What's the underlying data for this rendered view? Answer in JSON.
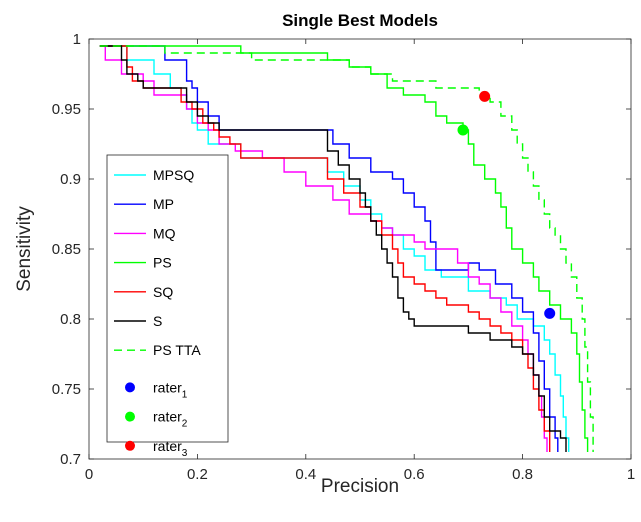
{
  "chart_data": {
    "type": "line",
    "title": "Single Best Models",
    "xlabel": "Precision",
    "ylabel": "Sensitivity",
    "xlim": [
      0,
      1
    ],
    "ylim": [
      0.7,
      1
    ],
    "xticks": [
      "0",
      "0.2",
      "0.4",
      "0.6",
      "0.8",
      "1"
    ],
    "yticks": [
      "0.7",
      "0.75",
      "0.8",
      "0.85",
      "0.9",
      "0.95",
      "1"
    ],
    "grid": false,
    "legend_position": "left",
    "series": [
      {
        "name": "MPSQ",
        "color": "#00ffff",
        "dash": "solid",
        "points": [
          [
            0.02,
            0.995
          ],
          [
            0.06,
            0.995
          ],
          [
            0.07,
            0.985
          ],
          [
            0.1,
            0.985
          ],
          [
            0.12,
            0.975
          ],
          [
            0.14,
            0.975
          ],
          [
            0.15,
            0.965
          ],
          [
            0.17,
            0.96
          ],
          [
            0.18,
            0.95
          ],
          [
            0.19,
            0.94
          ],
          [
            0.2,
            0.935
          ],
          [
            0.22,
            0.925
          ],
          [
            0.26,
            0.925
          ],
          [
            0.28,
            0.915
          ],
          [
            0.4,
            0.915
          ],
          [
            0.44,
            0.905
          ],
          [
            0.47,
            0.895
          ],
          [
            0.5,
            0.885
          ],
          [
            0.52,
            0.875
          ],
          [
            0.54,
            0.865
          ],
          [
            0.56,
            0.86
          ],
          [
            0.58,
            0.85
          ],
          [
            0.6,
            0.845
          ],
          [
            0.62,
            0.835
          ],
          [
            0.65,
            0.83
          ],
          [
            0.7,
            0.82
          ],
          [
            0.74,
            0.815
          ],
          [
            0.77,
            0.81
          ],
          [
            0.79,
            0.8
          ],
          [
            0.82,
            0.795
          ],
          [
            0.84,
            0.785
          ],
          [
            0.85,
            0.775
          ],
          [
            0.86,
            0.76
          ],
          [
            0.87,
            0.745
          ],
          [
            0.875,
            0.73
          ],
          [
            0.88,
            0.715
          ],
          [
            0.885,
            0.705
          ]
        ]
      },
      {
        "name": "MP",
        "color": "#0000ff",
        "dash": "solid",
        "points": [
          [
            0.02,
            0.995
          ],
          [
            0.13,
            0.995
          ],
          [
            0.14,
            0.985
          ],
          [
            0.17,
            0.985
          ],
          [
            0.18,
            0.97
          ],
          [
            0.19,
            0.965
          ],
          [
            0.2,
            0.955
          ],
          [
            0.22,
            0.945
          ],
          [
            0.24,
            0.935
          ],
          [
            0.42,
            0.935
          ],
          [
            0.45,
            0.925
          ],
          [
            0.48,
            0.915
          ],
          [
            0.52,
            0.905
          ],
          [
            0.56,
            0.9
          ],
          [
            0.58,
            0.89
          ],
          [
            0.6,
            0.88
          ],
          [
            0.62,
            0.87
          ],
          [
            0.63,
            0.855
          ],
          [
            0.64,
            0.835
          ],
          [
            0.66,
            0.835
          ],
          [
            0.7,
            0.84
          ],
          [
            0.72,
            0.835
          ],
          [
            0.75,
            0.825
          ],
          [
            0.78,
            0.815
          ],
          [
            0.8,
            0.805
          ],
          [
            0.82,
            0.79
          ],
          [
            0.83,
            0.77
          ],
          [
            0.84,
            0.75
          ],
          [
            0.85,
            0.73
          ],
          [
            0.86,
            0.715
          ],
          [
            0.865,
            0.705
          ]
        ]
      },
      {
        "name": "MQ",
        "color": "#ff00ff",
        "dash": "solid",
        "points": [
          [
            0.02,
            0.995
          ],
          [
            0.03,
            0.985
          ],
          [
            0.05,
            0.985
          ],
          [
            0.06,
            0.975
          ],
          [
            0.1,
            0.97
          ],
          [
            0.12,
            0.96
          ],
          [
            0.16,
            0.96
          ],
          [
            0.18,
            0.95
          ],
          [
            0.2,
            0.94
          ],
          [
            0.22,
            0.935
          ],
          [
            0.24,
            0.925
          ],
          [
            0.27,
            0.92
          ],
          [
            0.32,
            0.915
          ],
          [
            0.36,
            0.905
          ],
          [
            0.4,
            0.895
          ],
          [
            0.45,
            0.885
          ],
          [
            0.48,
            0.875
          ],
          [
            0.52,
            0.87
          ],
          [
            0.54,
            0.865
          ],
          [
            0.56,
            0.86
          ],
          [
            0.6,
            0.855
          ],
          [
            0.62,
            0.85
          ],
          [
            0.66,
            0.85
          ],
          [
            0.68,
            0.84
          ],
          [
            0.7,
            0.83
          ],
          [
            0.72,
            0.825
          ],
          [
            0.74,
            0.815
          ],
          [
            0.76,
            0.805
          ],
          [
            0.78,
            0.795
          ],
          [
            0.8,
            0.785
          ],
          [
            0.81,
            0.775
          ],
          [
            0.82,
            0.76
          ],
          [
            0.83,
            0.745
          ],
          [
            0.835,
            0.73
          ],
          [
            0.84,
            0.715
          ],
          [
            0.845,
            0.705
          ]
        ]
      },
      {
        "name": "PS",
        "color": "#00ff00",
        "dash": "solid",
        "points": [
          [
            0.02,
            0.995
          ],
          [
            0.26,
            0.995
          ],
          [
            0.28,
            0.99
          ],
          [
            0.4,
            0.99
          ],
          [
            0.44,
            0.985
          ],
          [
            0.48,
            0.98
          ],
          [
            0.52,
            0.975
          ],
          [
            0.55,
            0.965
          ],
          [
            0.58,
            0.96
          ],
          [
            0.62,
            0.955
          ],
          [
            0.64,
            0.945
          ],
          [
            0.66,
            0.94
          ],
          [
            0.69,
            0.935
          ],
          [
            0.7,
            0.925
          ],
          [
            0.71,
            0.91
          ],
          [
            0.73,
            0.9
          ],
          [
            0.75,
            0.89
          ],
          [
            0.76,
            0.88
          ],
          [
            0.77,
            0.865
          ],
          [
            0.78,
            0.85
          ],
          [
            0.8,
            0.84
          ],
          [
            0.82,
            0.83
          ],
          [
            0.83,
            0.82
          ],
          [
            0.85,
            0.81
          ],
          [
            0.87,
            0.8
          ],
          [
            0.89,
            0.79
          ],
          [
            0.9,
            0.775
          ],
          [
            0.905,
            0.755
          ],
          [
            0.91,
            0.735
          ],
          [
            0.915,
            0.715
          ],
          [
            0.92,
            0.705
          ]
        ]
      },
      {
        "name": "SQ",
        "color": "#ff0000",
        "dash": "solid",
        "points": [
          [
            0.02,
            0.995
          ],
          [
            0.06,
            0.995
          ],
          [
            0.07,
            0.98
          ],
          [
            0.08,
            0.97
          ],
          [
            0.1,
            0.965
          ],
          [
            0.15,
            0.965
          ],
          [
            0.17,
            0.955
          ],
          [
            0.19,
            0.95
          ],
          [
            0.21,
            0.94
          ],
          [
            0.23,
            0.935
          ],
          [
            0.24,
            0.93
          ],
          [
            0.26,
            0.925
          ],
          [
            0.28,
            0.915
          ],
          [
            0.42,
            0.915
          ],
          [
            0.44,
            0.9
          ],
          [
            0.47,
            0.89
          ],
          [
            0.5,
            0.88
          ],
          [
            0.52,
            0.87
          ],
          [
            0.54,
            0.86
          ],
          [
            0.56,
            0.85
          ],
          [
            0.57,
            0.84
          ],
          [
            0.58,
            0.83
          ],
          [
            0.6,
            0.825
          ],
          [
            0.62,
            0.82
          ],
          [
            0.64,
            0.815
          ],
          [
            0.66,
            0.81
          ],
          [
            0.7,
            0.805
          ],
          [
            0.72,
            0.8
          ],
          [
            0.74,
            0.795
          ],
          [
            0.76,
            0.79
          ],
          [
            0.78,
            0.785
          ],
          [
            0.8,
            0.775
          ],
          [
            0.81,
            0.765
          ],
          [
            0.82,
            0.75
          ],
          [
            0.83,
            0.735
          ],
          [
            0.84,
            0.72
          ],
          [
            0.85,
            0.705
          ]
        ]
      },
      {
        "name": "S",
        "color": "#000000",
        "dash": "solid",
        "points": [
          [
            0.02,
            0.995
          ],
          [
            0.05,
            0.995
          ],
          [
            0.06,
            0.985
          ],
          [
            0.07,
            0.975
          ],
          [
            0.09,
            0.97
          ],
          [
            0.1,
            0.965
          ],
          [
            0.16,
            0.965
          ],
          [
            0.18,
            0.955
          ],
          [
            0.2,
            0.945
          ],
          [
            0.22,
            0.94
          ],
          [
            0.24,
            0.935
          ],
          [
            0.43,
            0.935
          ],
          [
            0.44,
            0.92
          ],
          [
            0.46,
            0.91
          ],
          [
            0.48,
            0.9
          ],
          [
            0.5,
            0.89
          ],
          [
            0.51,
            0.88
          ],
          [
            0.52,
            0.87
          ],
          [
            0.53,
            0.86
          ],
          [
            0.54,
            0.85
          ],
          [
            0.55,
            0.84
          ],
          [
            0.56,
            0.83
          ],
          [
            0.57,
            0.815
          ],
          [
            0.58,
            0.805
          ],
          [
            0.59,
            0.8
          ],
          [
            0.6,
            0.795
          ],
          [
            0.68,
            0.795
          ],
          [
            0.7,
            0.79
          ],
          [
            0.74,
            0.785
          ],
          [
            0.78,
            0.78
          ],
          [
            0.8,
            0.775
          ],
          [
            0.82,
            0.76
          ],
          [
            0.83,
            0.745
          ],
          [
            0.84,
            0.73
          ],
          [
            0.85,
            0.72
          ],
          [
            0.87,
            0.715
          ],
          [
            0.88,
            0.705
          ]
        ]
      },
      {
        "name": "PS TTA",
        "color": "#00ff00",
        "dash": "dashed",
        "points": [
          [
            0.02,
            0.995
          ],
          [
            0.12,
            0.995
          ],
          [
            0.14,
            0.99
          ],
          [
            0.28,
            0.99
          ],
          [
            0.3,
            0.985
          ],
          [
            0.46,
            0.985
          ],
          [
            0.48,
            0.98
          ],
          [
            0.52,
            0.975
          ],
          [
            0.56,
            0.97
          ],
          [
            0.62,
            0.97
          ],
          [
            0.64,
            0.965
          ],
          [
            0.7,
            0.965
          ],
          [
            0.72,
            0.96
          ],
          [
            0.74,
            0.955
          ],
          [
            0.76,
            0.945
          ],
          [
            0.78,
            0.935
          ],
          [
            0.79,
            0.925
          ],
          [
            0.8,
            0.915
          ],
          [
            0.81,
            0.905
          ],
          [
            0.82,
            0.895
          ],
          [
            0.83,
            0.885
          ],
          [
            0.84,
            0.875
          ],
          [
            0.85,
            0.865
          ],
          [
            0.86,
            0.86
          ],
          [
            0.87,
            0.85
          ],
          [
            0.88,
            0.84
          ],
          [
            0.89,
            0.83
          ],
          [
            0.9,
            0.815
          ],
          [
            0.91,
            0.8
          ],
          [
            0.915,
            0.78
          ],
          [
            0.92,
            0.755
          ],
          [
            0.925,
            0.73
          ],
          [
            0.93,
            0.705
          ]
        ]
      }
    ],
    "scatter_series": [
      {
        "name": "rater",
        "subscript": "1",
        "color": "#0000ff",
        "x": 0.85,
        "y": 0.804
      },
      {
        "name": "rater",
        "subscript": "2",
        "color": "#00ff00",
        "x": 0.69,
        "y": 0.935
      },
      {
        "name": "rater",
        "subscript": "3",
        "color": "#ff0000",
        "x": 0.73,
        "y": 0.959
      }
    ]
  }
}
